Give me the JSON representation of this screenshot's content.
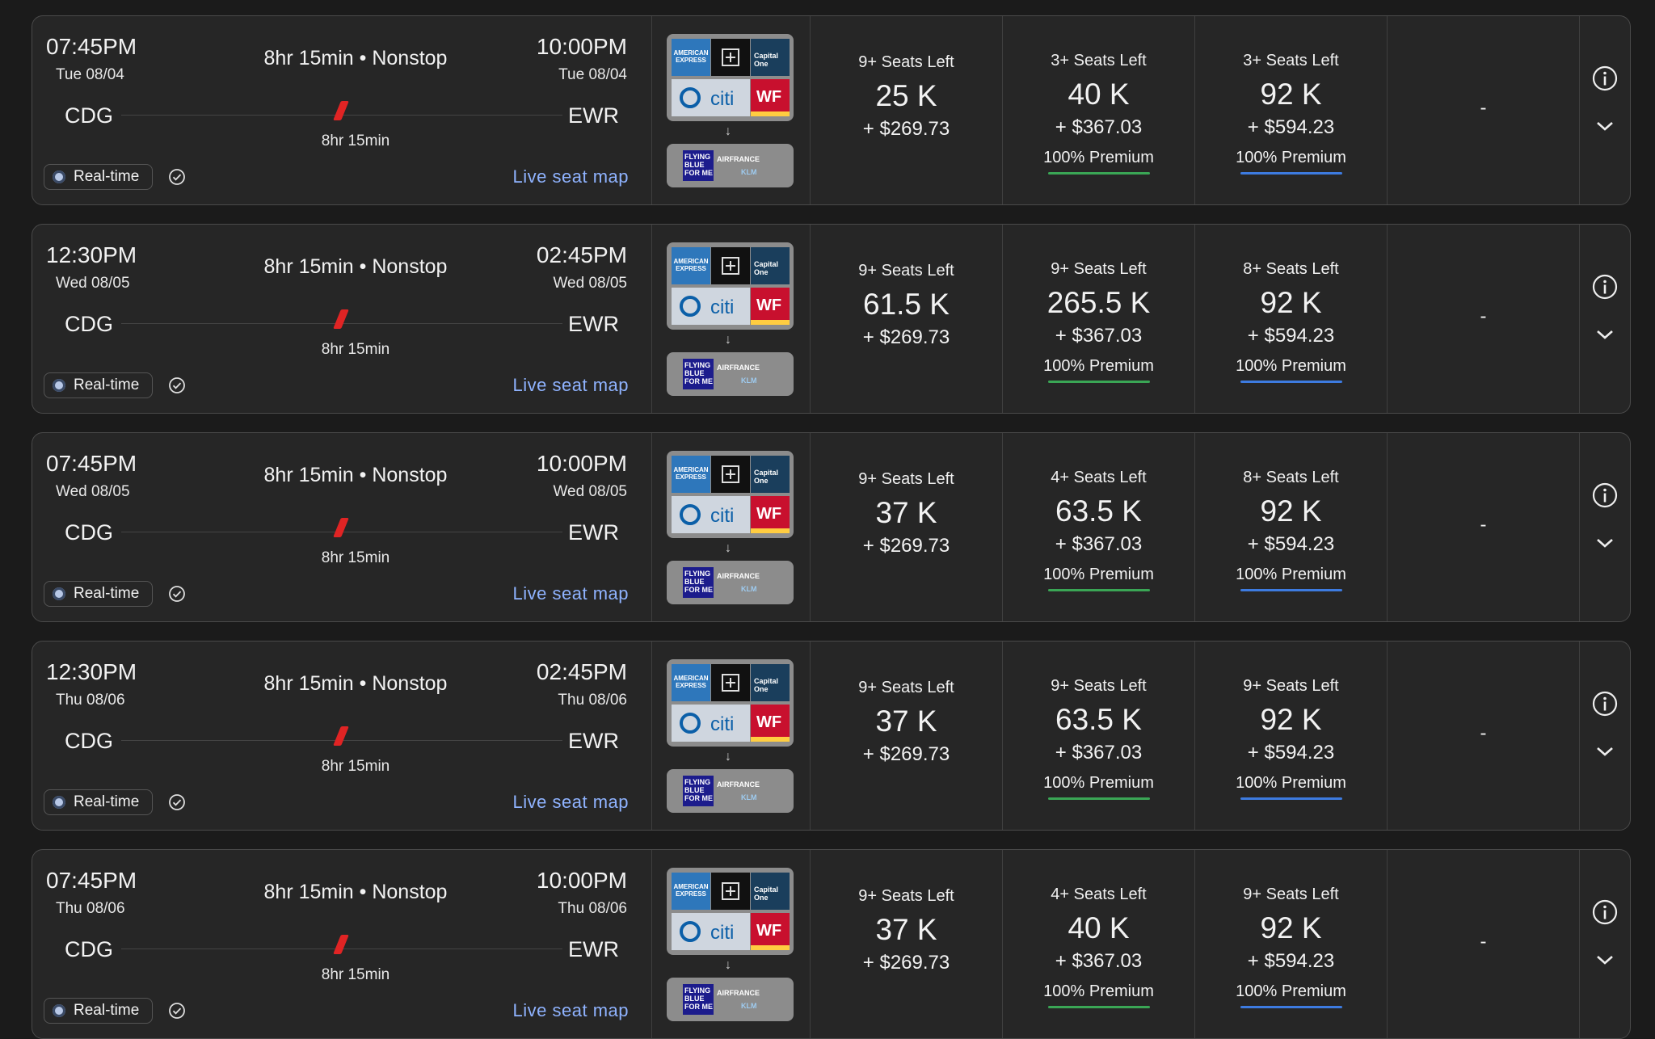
{
  "flights": [
    {
      "dep_time": "07:45PM",
      "dep_date": "Tue 08/04",
      "arr_time": "10:00PM",
      "arr_date": "Tue 08/04",
      "summary": "8hr 15min • Nonstop",
      "duration": "8hr 15min",
      "origin": "CDG",
      "destination": "EWR",
      "realtime": "Real-time",
      "seatmap": "Live seat map",
      "cabins": [
        {
          "seats": "9+ Seats Left",
          "miles": "25 K",
          "fee": "+ $269.73",
          "premium": ""
        },
        {
          "seats": "3+ Seats Left",
          "miles": "40 K",
          "fee": "+ $367.03",
          "premium": "100% Premium",
          "bar_color": "#3aa655"
        },
        {
          "seats": "3+ Seats Left",
          "miles": "92 K",
          "fee": "+ $594.23",
          "premium": "100% Premium",
          "bar_color": "#3d7be0"
        }
      ],
      "empty_cabin": "-"
    },
    {
      "dep_time": "12:30PM",
      "dep_date": "Wed 08/05",
      "arr_time": "02:45PM",
      "arr_date": "Wed 08/05",
      "summary": "8hr 15min • Nonstop",
      "duration": "8hr 15min",
      "origin": "CDG",
      "destination": "EWR",
      "realtime": "Real-time",
      "seatmap": "Live seat map",
      "cabins": [
        {
          "seats": "9+ Seats Left",
          "miles": "61.5 K",
          "fee": "+ $269.73",
          "premium": ""
        },
        {
          "seats": "9+ Seats Left",
          "miles": "265.5 K",
          "fee": "+ $367.03",
          "premium": "100% Premium",
          "bar_color": "#3aa655"
        },
        {
          "seats": "8+ Seats Left",
          "miles": "92 K",
          "fee": "+ $594.23",
          "premium": "100% Premium",
          "bar_color": "#3d7be0"
        }
      ],
      "empty_cabin": "-"
    },
    {
      "dep_time": "07:45PM",
      "dep_date": "Wed 08/05",
      "arr_time": "10:00PM",
      "arr_date": "Wed 08/05",
      "summary": "8hr 15min • Nonstop",
      "duration": "8hr 15min",
      "origin": "CDG",
      "destination": "EWR",
      "realtime": "Real-time",
      "seatmap": "Live seat map",
      "cabins": [
        {
          "seats": "9+ Seats Left",
          "miles": "37 K",
          "fee": "+ $269.73",
          "premium": ""
        },
        {
          "seats": "4+ Seats Left",
          "miles": "63.5 K",
          "fee": "+ $367.03",
          "premium": "100% Premium",
          "bar_color": "#3aa655"
        },
        {
          "seats": "8+ Seats Left",
          "miles": "92 K",
          "fee": "+ $594.23",
          "premium": "100% Premium",
          "bar_color": "#3d7be0"
        }
      ],
      "empty_cabin": "-"
    },
    {
      "dep_time": "12:30PM",
      "dep_date": "Thu 08/06",
      "arr_time": "02:45PM",
      "arr_date": "Thu 08/06",
      "summary": "8hr 15min • Nonstop",
      "duration": "8hr 15min",
      "origin": "CDG",
      "destination": "EWR",
      "realtime": "Real-time",
      "seatmap": "Live seat map",
      "cabins": [
        {
          "seats": "9+ Seats Left",
          "miles": "37 K",
          "fee": "+ $269.73",
          "premium": ""
        },
        {
          "seats": "9+ Seats Left",
          "miles": "63.5 K",
          "fee": "+ $367.03",
          "premium": "100% Premium",
          "bar_color": "#3aa655"
        },
        {
          "seats": "9+ Seats Left",
          "miles": "92 K",
          "fee": "+ $594.23",
          "premium": "100% Premium",
          "bar_color": "#3d7be0"
        }
      ],
      "empty_cabin": "-"
    },
    {
      "dep_time": "07:45PM",
      "dep_date": "Thu 08/06",
      "arr_time": "10:00PM",
      "arr_date": "Thu 08/06",
      "summary": "8hr 15min • Nonstop",
      "duration": "8hr 15min",
      "origin": "CDG",
      "destination": "EWR",
      "realtime": "Real-time",
      "seatmap": "Live seat map",
      "cabins": [
        {
          "seats": "9+ Seats Left",
          "miles": "37 K",
          "fee": "+ $269.73",
          "premium": ""
        },
        {
          "seats": "4+ Seats Left",
          "miles": "40 K",
          "fee": "+ $367.03",
          "premium": "100% Premium",
          "bar_color": "#3aa655"
        },
        {
          "seats": "9+ Seats Left",
          "miles": "92 K",
          "fee": "+ $594.23",
          "premium": "100% Premium",
          "bar_color": "#3d7be0"
        }
      ],
      "empty_cabin": "-"
    }
  ],
  "programs": {
    "amex_label": "AMERICAN EXPRESS",
    "capone_label": "Capital One",
    "citi_label": "citi",
    "wf_label": "WF",
    "flyingblue_label": "FLYING BLUE FOR ME",
    "airfrance_label": "AIRFRANCE",
    "klm_label": "KLM",
    "arrow": "↓"
  },
  "icons": {
    "info": "info-icon",
    "expand": "chevron-down-icon",
    "check": "check-circle-icon",
    "plane": "airline-tail-icon"
  },
  "colors": {
    "background": "#1b1b1b",
    "card": "#262626",
    "link": "#8fb3ff",
    "premium_green": "#3aa655",
    "premium_blue": "#3d7be0",
    "airline_red": "#e02424"
  }
}
